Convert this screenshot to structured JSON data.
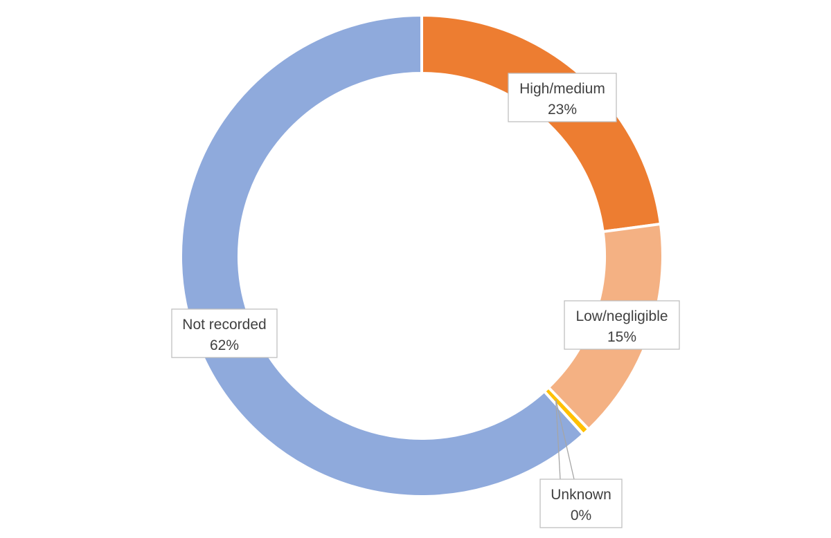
{
  "chart_data": {
    "type": "pie",
    "variant": "donut",
    "slices": [
      {
        "label": "High/medium",
        "value": 23,
        "value_label": "23%",
        "color": "#ed7d31"
      },
      {
        "label": "Low/negligible",
        "value": 15,
        "value_label": "15%",
        "color": "#f4b183"
      },
      {
        "label": "Unknown",
        "value": 0.5,
        "value_label": "0%",
        "color": "#ffc000"
      },
      {
        "label": "Not recorded",
        "value": 62,
        "value_label": "62%",
        "color": "#8faadc"
      }
    ],
    "legend": "none"
  }
}
